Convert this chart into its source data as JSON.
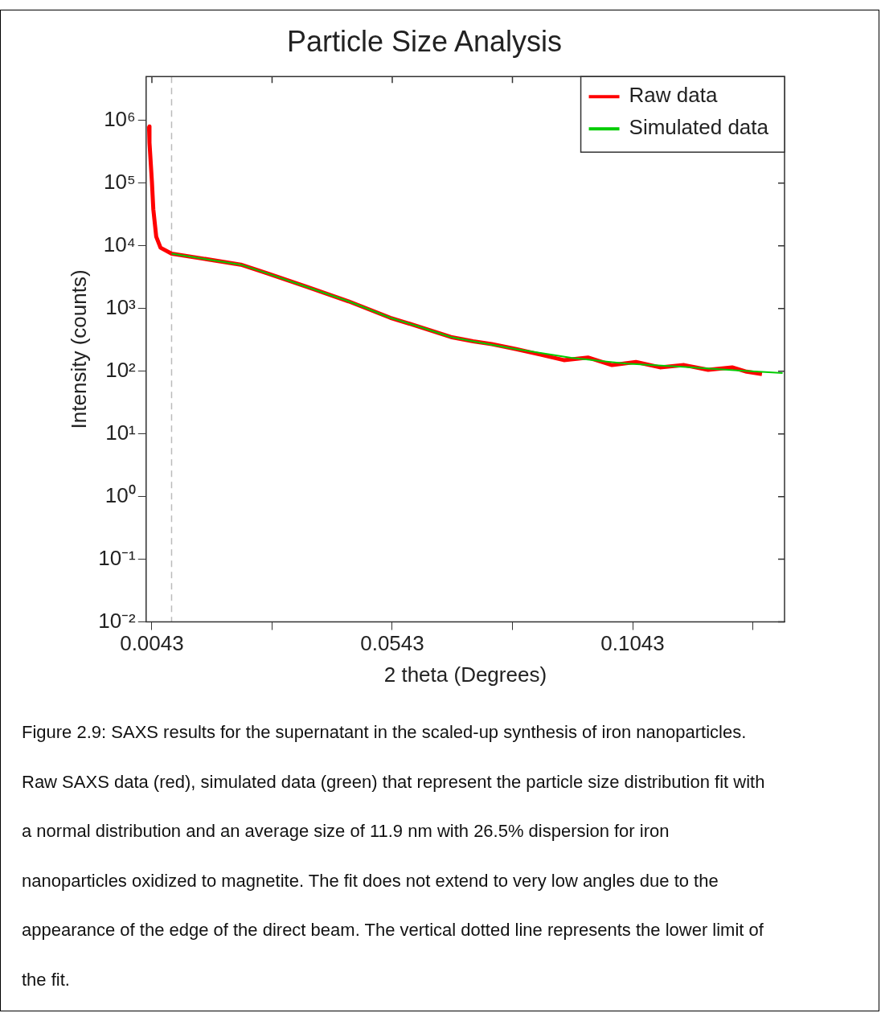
{
  "chart_data": {
    "type": "line",
    "title": "Particle Size Analysis",
    "xlabel": "2 theta (Degrees)",
    "ylabel": "Intensity (counts)",
    "log": "y",
    "grid": false,
    "legend": "top right",
    "xlim": [
      0.0031,
      0.1359
    ],
    "xticks": [
      0.0043,
      {
        "value": 0.0293,
        "label": null
      },
      0.0543,
      {
        "value": 0.0793,
        "label": null
      },
      0.1043,
      {
        "value": 0.1293,
        "label": null
      }
    ],
    "ylim": [
      0.01,
      5000000
    ],
    "yticks": [
      {
        "value": 0.01,
        "label": "10⁻²"
      },
      {
        "value": 0.1,
        "label": "10⁻¹"
      },
      {
        "value": 1,
        "label": "10⁰"
      },
      {
        "value": 10,
        "label": "10¹"
      },
      {
        "value": 100,
        "label": "10²"
      },
      {
        "value": 1000,
        "label": "10³"
      },
      {
        "value": 10000,
        "label": "10⁴"
      },
      {
        "value": 100000,
        "label": "10⁵"
      },
      {
        "value": 1000000,
        "label": "10⁶"
      }
    ],
    "ref_lines": [
      {
        "axis": "x",
        "value": 0.0084,
        "color": "#bbbbbb",
        "line_style": "dashed"
      }
    ],
    "series": [
      {
        "name": "Raw data",
        "color": "#ff0000",
        "x": [
          0.0037,
          0.0038,
          0.0043,
          0.0046,
          0.0052,
          0.0061,
          0.0084,
          0.0228,
          0.028,
          0.0366,
          0.0452,
          0.0539,
          0.0596,
          0.0665,
          0.0711,
          0.075,
          0.0801,
          0.085,
          0.09,
          0.095,
          0.1,
          0.105,
          0.11,
          0.115,
          0.12,
          0.125,
          0.128,
          0.1312
        ],
        "values": [
          800000,
          440000,
          107000,
          38000,
          14000,
          9300,
          7500,
          5000,
          3700,
          2200,
          1300,
          710,
          520,
          350,
          300,
          270,
          225,
          185,
          150,
          165,
          125,
          140,
          115,
          125,
          105,
          115,
          98,
          90
        ]
      },
      {
        "name": "Simulated data",
        "color": "#00cc00",
        "x": [
          0.0084,
          0.0228,
          0.028,
          0.0366,
          0.0452,
          0.0539,
          0.0596,
          0.0665,
          0.0711,
          0.0801,
          0.0915,
          0.103,
          0.1147,
          0.1261,
          0.1355
        ],
        "values": [
          7500,
          5000,
          3700,
          2200,
          1300,
          710,
          520,
          350,
          300,
          225,
          163,
          132,
          117,
          103,
          93
        ]
      }
    ],
    "annotations": [
      "Figure 2.9: SAXS results for the supernatant in the scaled-up synthesis of iron nanoparticles. Raw SAXS data (red), simulated data (green) that represent the particle size distribution fit with a normal distribution and an average size of 11.9 nm with 26.5% dispersion for iron nanoparticles oxidized to magnetite. The fit does not extend to very low angles due to the appearance of the edge of the direct beam. The vertical dotted line represents the lower limit of the fit."
    ]
  }
}
